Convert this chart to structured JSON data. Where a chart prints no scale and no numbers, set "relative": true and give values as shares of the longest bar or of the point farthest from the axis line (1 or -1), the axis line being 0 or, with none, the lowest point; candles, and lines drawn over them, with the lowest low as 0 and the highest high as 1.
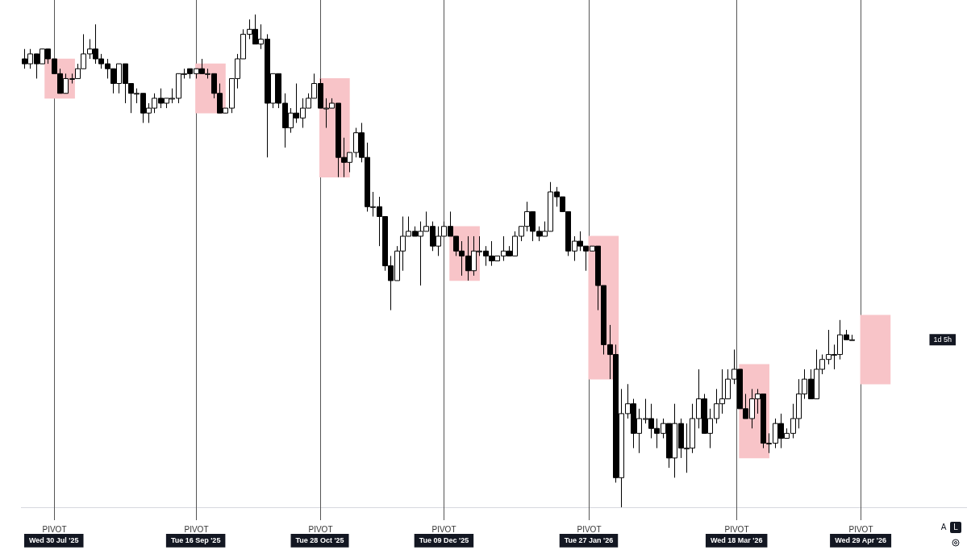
{
  "chart_data": {
    "type": "candlestick",
    "relative": true,
    "tick_labels": "x",
    "xlim": [
      "2025-07-19",
      "2026-06-04"
    ],
    "xticks": [
      {
        "value": "2025-07-30",
        "label": "Wed 30 Jul '25"
      },
      {
        "value": "2025-09-16",
        "label": "Tue 16 Sep '25"
      },
      {
        "value": "2025-10-28",
        "label": "Tue 28 Oct '25"
      },
      {
        "value": "2025-12-09",
        "label": "Tue 09 Dec '25"
      },
      {
        "value": "2026-01-27",
        "label": "Tue 27 Jan '26"
      },
      {
        "value": "2026-03-18",
        "label": "Wed 18 Mar '26"
      },
      {
        "value": "2026-04-29",
        "label": "Wed 29 Apr '26"
      }
    ],
    "ref_lines": [
      {
        "axis": "x",
        "value": "2025-07-30",
        "label": "PIVOT",
        "color": "#555555"
      },
      {
        "axis": "x",
        "value": "2025-09-16",
        "label": "PIVOT",
        "color": "#555555"
      },
      {
        "axis": "x",
        "value": "2025-10-28",
        "label": "PIVOT",
        "color": "#555555"
      },
      {
        "axis": "x",
        "value": "2025-12-09",
        "label": "PIVOT",
        "color": "#555555"
      },
      {
        "axis": "x",
        "value": "2026-01-27",
        "label": "PIVOT",
        "color": "#555555"
      },
      {
        "axis": "x",
        "value": "2026-03-18",
        "label": "PIVOT",
        "color": "#555555"
      },
      {
        "axis": "x",
        "value": "2026-04-29",
        "label": "PIVOT",
        "color": "#555555"
      }
    ],
    "x": [
      "2025-07-20",
      "2025-07-22",
      "2025-07-24",
      "2025-07-26",
      "2025-07-28",
      "2025-07-30",
      "2025-08-01",
      "2025-08-03",
      "2025-08-05",
      "2025-08-07",
      "2025-08-09",
      "2025-08-11",
      "2025-08-13",
      "2025-08-15",
      "2025-08-17",
      "2025-08-19",
      "2025-08-21",
      "2025-08-23",
      "2025-08-25",
      "2025-08-27",
      "2025-08-29",
      "2025-08-31",
      "2025-09-02",
      "2025-09-04",
      "2025-09-06",
      "2025-09-08",
      "2025-09-10",
      "2025-09-12",
      "2025-09-14",
      "2025-09-16",
      "2025-09-18",
      "2025-09-20",
      "2025-09-22",
      "2025-09-24",
      "2025-09-26",
      "2025-09-28",
      "2025-09-30",
      "2025-10-02",
      "2025-10-04",
      "2025-10-06",
      "2025-10-08",
      "2025-10-10",
      "2025-10-12",
      "2025-10-14",
      "2025-10-16",
      "2025-10-18",
      "2025-10-20",
      "2025-10-22",
      "2025-10-24",
      "2025-10-26",
      "2025-10-28",
      "2025-10-30",
      "2025-11-01",
      "2025-11-03",
      "2025-11-05",
      "2025-11-07",
      "2025-11-09",
      "2025-11-11",
      "2025-11-13",
      "2025-11-15",
      "2025-11-17",
      "2025-11-19",
      "2025-11-21",
      "2025-11-23",
      "2025-11-25",
      "2025-11-27",
      "2025-11-29",
      "2025-12-01",
      "2025-12-03",
      "2025-12-05",
      "2025-12-07",
      "2025-12-09",
      "2025-12-11",
      "2025-12-13",
      "2025-12-15",
      "2025-12-17",
      "2025-12-19",
      "2025-12-21",
      "2025-12-23",
      "2025-12-25",
      "2025-12-27",
      "2025-12-29",
      "2025-12-31",
      "2026-01-02",
      "2026-01-04",
      "2026-01-06",
      "2026-01-08",
      "2026-01-10",
      "2026-01-12",
      "2026-01-14",
      "2026-01-16",
      "2026-01-18",
      "2026-01-20",
      "2026-01-22",
      "2026-01-24",
      "2026-01-26",
      "2026-01-28",
      "2026-01-30",
      "2026-02-01",
      "2026-02-03",
      "2026-02-05",
      "2026-02-07",
      "2026-02-09",
      "2026-02-11",
      "2026-02-13",
      "2026-02-15",
      "2026-02-17",
      "2026-02-19",
      "2026-02-21",
      "2026-02-23",
      "2026-02-25",
      "2026-02-27",
      "2026-03-01",
      "2026-03-03",
      "2026-03-05",
      "2026-03-07",
      "2026-03-09",
      "2026-03-11",
      "2026-03-13",
      "2026-03-15",
      "2026-03-17",
      "2026-03-19",
      "2026-03-21",
      "2026-03-23",
      "2026-03-25",
      "2026-03-27",
      "2026-03-29",
      "2026-03-31",
      "2026-04-02",
      "2026-04-04",
      "2026-04-06",
      "2026-04-08",
      "2026-04-10",
      "2026-04-12",
      "2026-04-14",
      "2026-04-16",
      "2026-04-18",
      "2026-04-20",
      "2026-04-22",
      "2026-04-24",
      "2026-04-26"
    ],
    "ohlc": [
      [
        0.91,
        0.93,
        0.89,
        0.9
      ],
      [
        0.9,
        0.93,
        0.89,
        0.92
      ],
      [
        0.92,
        0.92,
        0.87,
        0.9
      ],
      [
        0.9,
        0.93,
        0.9,
        0.93
      ],
      [
        0.93,
        0.93,
        0.9,
        0.91
      ],
      [
        0.91,
        0.91,
        0.88,
        0.88
      ],
      [
        0.88,
        0.89,
        0.84,
        0.84
      ],
      [
        0.84,
        0.88,
        0.84,
        0.87
      ],
      [
        0.87,
        0.88,
        0.86,
        0.87
      ],
      [
        0.87,
        0.9,
        0.87,
        0.89
      ],
      [
        0.89,
        0.96,
        0.89,
        0.92
      ],
      [
        0.92,
        0.95,
        0.91,
        0.93
      ],
      [
        0.93,
        0.98,
        0.9,
        0.91
      ],
      [
        0.91,
        0.92,
        0.89,
        0.9
      ],
      [
        0.9,
        0.91,
        0.87,
        0.89
      ],
      [
        0.89,
        0.89,
        0.84,
        0.86
      ],
      [
        0.86,
        0.9,
        0.84,
        0.9
      ],
      [
        0.9,
        0.9,
        0.82,
        0.86
      ],
      [
        0.86,
        0.86,
        0.8,
        0.84
      ],
      [
        0.84,
        0.85,
        0.82,
        0.84
      ],
      [
        0.84,
        0.84,
        0.78,
        0.8
      ],
      [
        0.8,
        0.82,
        0.78,
        0.81
      ],
      [
        0.81,
        0.84,
        0.8,
        0.83
      ],
      [
        0.83,
        0.85,
        0.81,
        0.82
      ],
      [
        0.82,
        0.83,
        0.81,
        0.83
      ],
      [
        0.83,
        0.85,
        0.82,
        0.83
      ],
      [
        0.83,
        0.88,
        0.82,
        0.88
      ],
      [
        0.88,
        0.89,
        0.87,
        0.88
      ],
      [
        0.89,
        0.89,
        0.87,
        0.88
      ],
      [
        0.88,
        0.89,
        0.87,
        0.89
      ],
      [
        0.89,
        0.91,
        0.88,
        0.88
      ],
      [
        0.88,
        0.89,
        0.87,
        0.88
      ],
      [
        0.88,
        0.88,
        0.83,
        0.84
      ],
      [
        0.84,
        0.86,
        0.8,
        0.8
      ],
      [
        0.8,
        0.81,
        0.8,
        0.81
      ],
      [
        0.81,
        0.87,
        0.8,
        0.87
      ],
      [
        0.87,
        0.92,
        0.85,
        0.91
      ],
      [
        0.91,
        0.97,
        0.91,
        0.96
      ],
      [
        0.96,
        0.99,
        0.95,
        0.97
      ],
      [
        0.97,
        1.0,
        0.94,
        0.94
      ],
      [
        0.94,
        0.98,
        0.93,
        0.95
      ],
      [
        0.95,
        0.96,
        0.71,
        0.82
      ],
      [
        0.82,
        0.88,
        0.81,
        0.88
      ],
      [
        0.88,
        0.88,
        0.81,
        0.82
      ],
      [
        0.82,
        0.84,
        0.73,
        0.77
      ],
      [
        0.77,
        0.81,
        0.76,
        0.8
      ],
      [
        0.8,
        0.86,
        0.78,
        0.79
      ],
      [
        0.79,
        0.83,
        0.77,
        0.81
      ],
      [
        0.81,
        0.84,
        0.81,
        0.83
      ],
      [
        0.83,
        0.88,
        0.83,
        0.86
      ],
      [
        0.86,
        0.87,
        0.81,
        0.81
      ],
      [
        0.81,
        0.83,
        0.77,
        0.81
      ],
      [
        0.81,
        0.83,
        0.81,
        0.82
      ],
      [
        0.82,
        0.82,
        0.67,
        0.71
      ],
      [
        0.71,
        0.75,
        0.67,
        0.7
      ],
      [
        0.7,
        0.72,
        0.68,
        0.72
      ],
      [
        0.72,
        0.77,
        0.71,
        0.76
      ],
      [
        0.76,
        0.78,
        0.7,
        0.71
      ],
      [
        0.71,
        0.74,
        0.6,
        0.61
      ],
      [
        0.61,
        0.64,
        0.59,
        0.61
      ],
      [
        0.61,
        0.63,
        0.53,
        0.59
      ],
      [
        0.59,
        0.59,
        0.48,
        0.49
      ],
      [
        0.49,
        0.51,
        0.4,
        0.46
      ],
      [
        0.46,
        0.53,
        0.46,
        0.52
      ],
      [
        0.52,
        0.59,
        0.48,
        0.55
      ],
      [
        0.55,
        0.59,
        0.55,
        0.56
      ],
      [
        0.56,
        0.57,
        0.55,
        0.55
      ],
      [
        0.55,
        0.58,
        0.45,
        0.56
      ],
      [
        0.56,
        0.6,
        0.56,
        0.57
      ],
      [
        0.57,
        0.58,
        0.52,
        0.53
      ],
      [
        0.53,
        0.57,
        0.51,
        0.55
      ],
      [
        0.55,
        0.58,
        0.55,
        0.57
      ],
      [
        0.57,
        0.6,
        0.55,
        0.55
      ],
      [
        0.55,
        0.55,
        0.51,
        0.52
      ],
      [
        0.52,
        0.54,
        0.47,
        0.51
      ],
      [
        0.51,
        0.55,
        0.46,
        0.48
      ],
      [
        0.48,
        0.55,
        0.47,
        0.52
      ],
      [
        0.52,
        0.55,
        0.51,
        0.52
      ],
      [
        0.52,
        0.53,
        0.49,
        0.51
      ],
      [
        0.51,
        0.54,
        0.49,
        0.5
      ],
      [
        0.5,
        0.51,
        0.5,
        0.51
      ],
      [
        0.51,
        0.55,
        0.5,
        0.52
      ],
      [
        0.52,
        0.53,
        0.51,
        0.51
      ],
      [
        0.51,
        0.56,
        0.51,
        0.55
      ],
      [
        0.55,
        0.57,
        0.54,
        0.57
      ],
      [
        0.57,
        0.62,
        0.56,
        0.6
      ],
      [
        0.6,
        0.6,
        0.54,
        0.56
      ],
      [
        0.56,
        0.57,
        0.54,
        0.55
      ],
      [
        0.55,
        0.58,
        0.55,
        0.56
      ],
      [
        0.56,
        0.66,
        0.56,
        0.64
      ],
      [
        0.64,
        0.65,
        0.61,
        0.63
      ],
      [
        0.63,
        0.63,
        0.6,
        0.6
      ],
      [
        0.6,
        0.6,
        0.51,
        0.52
      ],
      [
        0.52,
        0.55,
        0.5,
        0.54
      ],
      [
        0.54,
        0.56,
        0.52,
        0.53
      ],
      [
        0.53,
        0.53,
        0.48,
        0.52
      ],
      [
        0.52,
        0.53,
        0.52,
        0.53
      ],
      [
        0.53,
        0.53,
        0.4,
        0.45
      ],
      [
        0.45,
        0.45,
        0.31,
        0.33
      ],
      [
        0.33,
        0.37,
        0.26,
        0.31
      ],
      [
        0.31,
        0.33,
        0.05,
        0.06
      ],
      [
        0.06,
        0.24,
        0.0,
        0.19
      ],
      [
        0.19,
        0.25,
        0.18,
        0.21
      ],
      [
        0.21,
        0.22,
        0.12,
        0.15
      ],
      [
        0.15,
        0.2,
        0.11,
        0.18
      ],
      [
        0.18,
        0.22,
        0.17,
        0.18
      ],
      [
        0.18,
        0.21,
        0.14,
        0.16
      ],
      [
        0.16,
        0.18,
        0.12,
        0.15
      ],
      [
        0.15,
        0.18,
        0.14,
        0.17
      ],
      [
        0.17,
        0.17,
        0.08,
        0.1
      ],
      [
        0.1,
        0.21,
        0.06,
        0.17
      ],
      [
        0.17,
        0.18,
        0.1,
        0.12
      ],
      [
        0.12,
        0.17,
        0.07,
        0.12
      ],
      [
        0.12,
        0.21,
        0.11,
        0.18
      ],
      [
        0.18,
        0.28,
        0.16,
        0.22
      ],
      [
        0.22,
        0.23,
        0.15,
        0.15
      ],
      [
        0.15,
        0.2,
        0.12,
        0.18
      ],
      [
        0.18,
        0.24,
        0.17,
        0.21
      ],
      [
        0.21,
        0.28,
        0.19,
        0.22
      ],
      [
        0.22,
        0.28,
        0.22,
        0.26
      ],
      [
        0.26,
        0.32,
        0.25,
        0.28
      ],
      [
        0.28,
        0.28,
        0.2,
        0.2
      ],
      [
        0.2,
        0.23,
        0.18,
        0.18
      ],
      [
        0.18,
        0.24,
        0.16,
        0.22
      ],
      [
        0.22,
        0.24,
        0.19,
        0.23
      ],
      [
        0.23,
        0.23,
        0.12,
        0.13
      ],
      [
        0.13,
        0.15,
        0.11,
        0.13
      ],
      [
        0.13,
        0.18,
        0.12,
        0.17
      ],
      [
        0.17,
        0.19,
        0.12,
        0.14
      ],
      [
        0.14,
        0.16,
        0.14,
        0.15
      ],
      [
        0.15,
        0.21,
        0.14,
        0.18
      ],
      [
        0.18,
        0.26,
        0.16,
        0.23
      ],
      [
        0.23,
        0.28,
        0.22,
        0.26
      ],
      [
        0.26,
        0.28,
        0.22,
        0.22
      ],
      [
        0.22,
        0.32,
        0.22,
        0.28
      ],
      [
        0.28,
        0.31,
        0.27,
        0.3
      ],
      [
        0.3,
        0.36,
        0.29,
        0.31
      ],
      [
        0.31,
        0.33,
        0.28,
        0.31
      ],
      [
        0.31,
        0.38,
        0.3,
        0.35
      ],
      [
        0.35,
        0.36,
        0.34,
        0.34
      ],
      [
        0.34,
        0.35,
        0.34,
        0.34
      ]
    ],
    "series": [
      {
        "type": "bar",
        "color": "#f8c4c8",
        "x": [
          "2025-08-01",
          "2025-09-21",
          "2025-11-02",
          "2025-12-16",
          "2026-02-01",
          "2026-03-24",
          "2026-05-04"
        ],
        "base": [
          0.83,
          0.8,
          0.67,
          0.46,
          0.26,
          0.1,
          0.25
        ],
        "values": [
          0.08,
          0.1,
          0.2,
          0.11,
          0.29,
          0.19,
          0.14
        ]
      }
    ],
    "annotations": [
      "1d 5h",
      "A",
      "L"
    ]
  }
}
